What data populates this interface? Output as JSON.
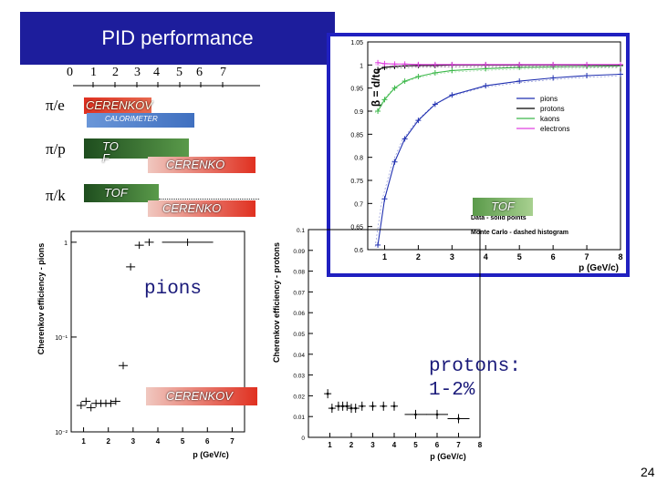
{
  "slide": {
    "title": "PID performance",
    "page_number": "24",
    "annotation_pions": "pions",
    "annotation_protons": "protons:\n1-2%"
  },
  "momentum_scale": {
    "ticks": [
      "0",
      "1",
      "2",
      "3",
      "4",
      "5",
      "6",
      "7"
    ]
  },
  "separations": [
    {
      "label": "π/e",
      "bars": [
        "CERENKOV",
        "CALORIMETER"
      ]
    },
    {
      "label": "π/p",
      "bars": [
        "TO F",
        "CERENKO"
      ]
    },
    {
      "label": "π/k",
      "bars": [
        "TOF",
        "CERENKO"
      ]
    }
  ],
  "overlay_labels": {
    "tof": "TOF",
    "cerenkov": "CERENKOV"
  },
  "colors": {
    "title_bg": "#1d1d9c",
    "pions": "#1f2fb0",
    "protons": "#000000",
    "kaons": "#3cb84a",
    "electrons": "#e040e0",
    "cerenkov_bar": "#e03020",
    "calorimeter_bar": "#5080c8",
    "tof_bar": "#2a6a2a",
    "frame_blue": "#2020c0"
  },
  "chart_data": [
    {
      "type": "line",
      "title": "",
      "xlabel": "p (GeV/c)",
      "ylabel": "β = d/tc",
      "xlim": [
        0.5,
        8
      ],
      "ylim": [
        0.6,
        1.05
      ],
      "xticks": [
        "1",
        "2",
        "3",
        "4",
        "5",
        "6",
        "7",
        "8"
      ],
      "yticks": [
        "0.6",
        "0.65",
        "0.7",
        "0.75",
        "0.8",
        "0.85",
        "0.9",
        "0.95",
        "1",
        "1.05"
      ],
      "legend": [
        "pions",
        "protons",
        "kaons",
        "electrons"
      ],
      "legend_position": "right",
      "notes": [
        "Data - solid points",
        "Monte Carlo - dashed histogram"
      ],
      "series": [
        {
          "name": "pions",
          "x": [
            0.8,
            1.0,
            1.3,
            1.6,
            2.0,
            2.5,
            3.0,
            4.0,
            5.0,
            6.0,
            7.0,
            8.0
          ],
          "values": [
            0.61,
            0.71,
            0.79,
            0.84,
            0.88,
            0.915,
            0.935,
            0.955,
            0.965,
            0.972,
            0.977,
            0.98
          ]
        },
        {
          "name": "kaons",
          "x": [
            0.8,
            1.0,
            1.3,
            1.6,
            2.0,
            2.5,
            3.0,
            4.0,
            5.0,
            6.0,
            7.0,
            8.0
          ],
          "values": [
            0.9,
            0.925,
            0.95,
            0.965,
            0.975,
            0.983,
            0.988,
            0.992,
            0.995,
            0.996,
            0.997,
            0.998
          ]
        },
        {
          "name": "protons",
          "x": [
            0.8,
            1.0,
            1.3,
            1.6,
            2.0,
            2.5,
            3.0,
            4.0,
            5.0,
            6.0,
            7.0,
            8.0
          ],
          "values": [
            0.99,
            0.995,
            0.997,
            0.998,
            0.999,
            0.999,
            1.0,
            1.0,
            1.0,
            1.0,
            1.0,
            1.0
          ]
        },
        {
          "name": "electrons",
          "x": [
            0.8,
            1.0,
            1.3,
            1.6,
            2.0,
            2.5,
            3.0,
            4.0,
            5.0,
            6.0,
            7.0,
            8.0
          ],
          "values": [
            1.005,
            1.003,
            1.002,
            1.002,
            1.001,
            1.001,
            1.001,
            1.001,
            1.001,
            1.001,
            1.001,
            1.001
          ]
        }
      ]
    },
    {
      "type": "scatter",
      "title": "",
      "xlabel": "p (GeV/c)",
      "ylabel": "Cherenkov efficiency - pions",
      "log_y": true,
      "xlim": [
        0.5,
        7.5
      ],
      "ylim": [
        0.01,
        1.3
      ],
      "xticks": [
        "1",
        "2",
        "3",
        "4",
        "5",
        "6",
        "7"
      ],
      "yticks": [
        "10⁻²",
        "10⁻¹",
        "1"
      ],
      "series": [
        {
          "name": "pions",
          "x": [
            0.9,
            1.1,
            1.3,
            1.5,
            1.7,
            1.9,
            2.1,
            2.3,
            2.6,
            2.9,
            3.25,
            3.65,
            5.2
          ],
          "values": [
            0.019,
            0.021,
            0.018,
            0.02,
            0.02,
            0.02,
            0.02,
            0.021,
            0.05,
            0.55,
            0.93,
            1.0,
            1.0
          ]
        }
      ]
    },
    {
      "type": "scatter",
      "title": "",
      "xlabel": "p (GeV/c)",
      "ylabel": "Cherenkov efficiency - protons",
      "xlim": [
        0,
        8
      ],
      "ylim": [
        0,
        0.1
      ],
      "xticks": [
        "1",
        "2",
        "3",
        "4",
        "5",
        "6",
        "7",
        "8"
      ],
      "yticks": [
        "0",
        "0.01",
        "0.02",
        "0.03",
        "0.04",
        "0.05",
        "0.06",
        "0.07",
        "0.08",
        "0.09",
        "0.1"
      ],
      "series": [
        {
          "name": "protons",
          "x": [
            0.9,
            1.1,
            1.4,
            1.6,
            1.8,
            2.0,
            2.2,
            2.5,
            3.0,
            3.5,
            4.0,
            5.0,
            6.0,
            7.0
          ],
          "values": [
            0.021,
            0.014,
            0.015,
            0.015,
            0.015,
            0.014,
            0.014,
            0.015,
            0.015,
            0.015,
            0.015,
            0.011,
            0.011,
            0.009
          ]
        }
      ]
    }
  ]
}
